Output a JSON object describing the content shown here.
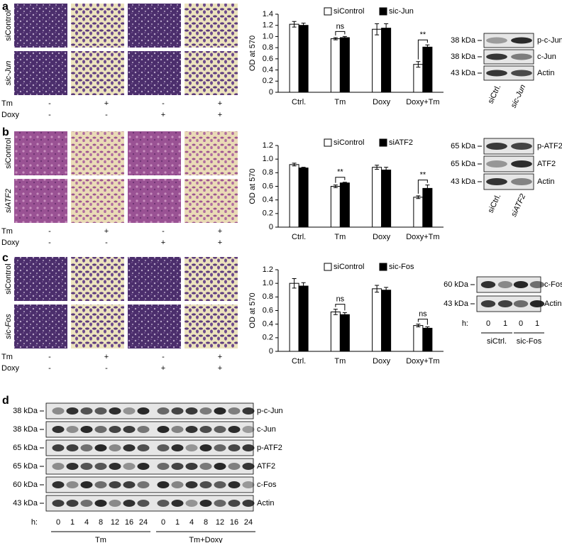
{
  "panels": [
    {
      "label": "a",
      "rows": [
        "siControl",
        "sic-Jun"
      ],
      "treatments": [
        {
          "name": "Tm",
          "signs": [
            "-",
            "+",
            "-",
            "+"
          ]
        },
        {
          "name": "Doxy",
          "signs": [
            "-",
            "-",
            "+",
            "+"
          ]
        }
      ],
      "blot": {
        "bands": [
          {
            "size": "38 kDa",
            "protein": "p-c-Jun"
          },
          {
            "size": "38 kDa",
            "protein": "c-Jun"
          },
          {
            "size": "43 kDa",
            "protein": "Actin"
          }
        ],
        "lanes": [
          "siCtrl.",
          "sic-Jun"
        ]
      }
    },
    {
      "label": "b",
      "rows": [
        "siControl",
        "siATF2"
      ],
      "treatments": [
        {
          "name": "Tm",
          "signs": [
            "-",
            "+",
            "-",
            "+"
          ]
        },
        {
          "name": "Doxy",
          "signs": [
            "-",
            "-",
            "+",
            "+"
          ]
        }
      ],
      "blot": {
        "bands": [
          {
            "size": "65 kDa",
            "protein": "p-ATF2"
          },
          {
            "size": "65 kDa",
            "protein": "ATF2"
          },
          {
            "size": "43 kDa",
            "protein": "Actin"
          }
        ],
        "lanes": [
          "siCtrl.",
          "siATF2"
        ]
      }
    },
    {
      "label": "c",
      "rows": [
        "siControl",
        "sic-Fos"
      ],
      "treatments": [
        {
          "name": "Tm",
          "signs": [
            "-",
            "+",
            "-",
            "+"
          ]
        },
        {
          "name": "Doxy",
          "signs": [
            "-",
            "-",
            "+",
            "+"
          ]
        }
      ],
      "blot": {
        "bands": [
          {
            "size": "60 kDa",
            "protein": "c-Fos"
          },
          {
            "size": "43 kDa",
            "protein": "Actin"
          }
        ],
        "time_label": "h:",
        "times": [
          "0",
          "1",
          "0",
          "1"
        ],
        "groups": [
          "siCtrl.",
          "sic-Fos"
        ]
      }
    },
    {
      "label": "d",
      "blot": {
        "bands": [
          {
            "size": "38 kDa",
            "protein": "p-c-Jun"
          },
          {
            "size": "38 kDa",
            "protein": "c-Jun"
          },
          {
            "size": "65 kDa",
            "protein": "p-ATF2"
          },
          {
            "size": "65 kDa",
            "protein": "ATF2"
          },
          {
            "size": "60 kDa",
            "protein": "c-Fos"
          },
          {
            "size": "43 kDa",
            "protein": "Actin"
          }
        ],
        "time_label": "h:",
        "times": [
          "0",
          "1",
          "4",
          "8",
          "12",
          "16",
          "24",
          "0",
          "1",
          "4",
          "8",
          "12",
          "16",
          "24"
        ],
        "groups": [
          "Tm",
          "Tm+Doxy"
        ]
      }
    }
  ],
  "chart_data": [
    {
      "type": "bar",
      "ylabel": "OD at 570",
      "categories": [
        "Ctrl.",
        "Tm",
        "Doxy",
        "Doxy+Tm"
      ],
      "series": [
        {
          "name": "siControl",
          "color": "#ffffff",
          "values": [
            1.22,
            0.96,
            1.13,
            0.5
          ],
          "errors": [
            0.05,
            0.02,
            0.1,
            0.05
          ]
        },
        {
          "name": "sic-Jun",
          "color": "#000000",
          "values": [
            1.2,
            0.98,
            1.15,
            0.81
          ],
          "errors": [
            0.04,
            0.02,
            0.08,
            0.04
          ]
        }
      ],
      "annotations": [
        null,
        "ns",
        null,
        "**"
      ],
      "ylim": [
        0,
        1.4
      ],
      "yticks": [
        0,
        0.2,
        0.4,
        0.6,
        0.8,
        {
          "value": 1,
          "label": "1.0"
        },
        1.2,
        1.4
      ]
    },
    {
      "type": "bar",
      "ylabel": "OD at 570",
      "categories": [
        "Ctrl.",
        "Tm",
        "Doxy",
        "Doxy+Tm"
      ],
      "series": [
        {
          "name": "siControl",
          "color": "#ffffff",
          "values": [
            0.92,
            0.6,
            0.88,
            0.44
          ],
          "errors": [
            0.02,
            0.02,
            0.03,
            0.02
          ]
        },
        {
          "name": "siATF2",
          "color": "#000000",
          "values": [
            0.87,
            0.65,
            0.84,
            0.57
          ],
          "errors": [
            0.01,
            0.01,
            0.04,
            0.05
          ]
        }
      ],
      "annotations": [
        null,
        "**",
        null,
        "**"
      ],
      "ylim": [
        0,
        1.2
      ],
      "yticks": [
        0,
        0.2,
        0.4,
        0.6,
        0.8,
        {
          "value": 1,
          "label": "1.0"
        },
        1.2
      ]
    },
    {
      "type": "bar",
      "ylabel": "OD at 570",
      "categories": [
        "Ctrl.",
        "Tm",
        "Doxy",
        "Doxy+Tm"
      ],
      "series": [
        {
          "name": "siControl",
          "color": "#ffffff",
          "values": [
            1.0,
            0.58,
            0.92,
            0.38
          ],
          "errors": [
            0.07,
            0.04,
            0.05,
            0.02
          ]
        },
        {
          "name": "sic-Fos",
          "color": "#000000",
          "values": [
            0.96,
            0.54,
            0.9,
            0.34
          ],
          "errors": [
            0.05,
            0.03,
            0.04,
            0.02
          ]
        }
      ],
      "annotations": [
        null,
        "ns",
        null,
        "ns"
      ],
      "ylim": [
        0,
        1.2
      ],
      "yticks": [
        0,
        0.2,
        0.4,
        0.6,
        0.8,
        {
          "value": 1,
          "label": "1.0"
        },
        1.2
      ]
    }
  ]
}
